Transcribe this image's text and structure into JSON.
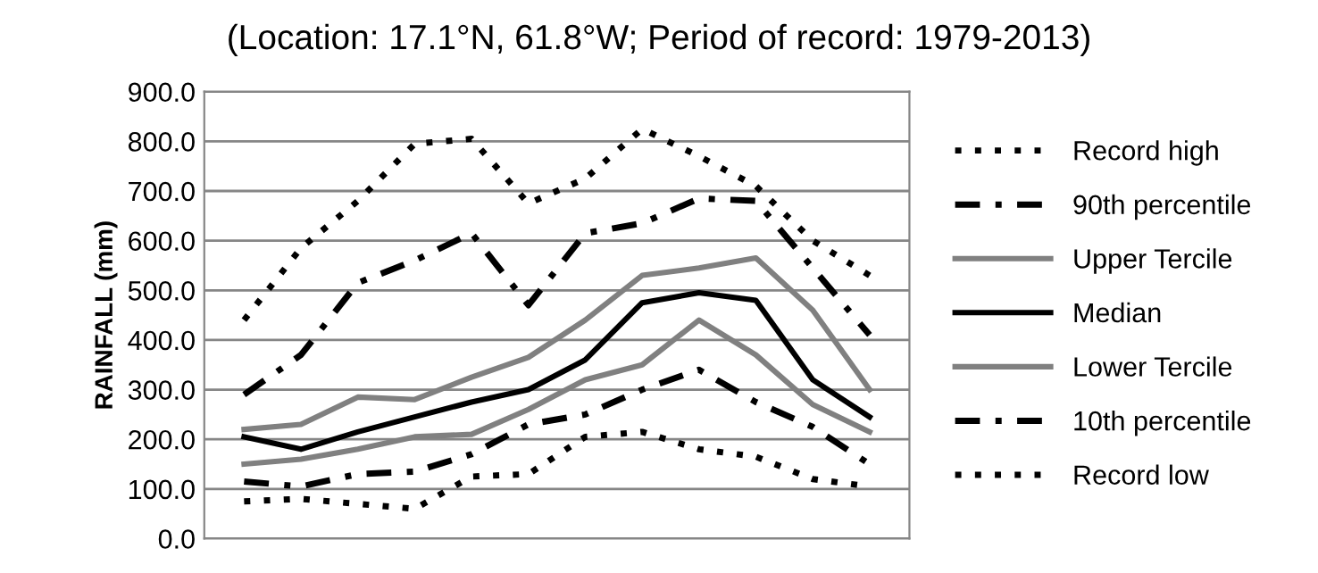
{
  "chart_data": {
    "type": "line",
    "title": "(Location: 17.1°N, 61.8°W; Period of record: 1979-2013)",
    "ylabel": "RAINFALL (mm)",
    "categories": [
      null,
      null,
      null,
      null,
      null,
      null,
      null,
      null,
      null,
      null,
      null,
      null
    ],
    "series": [
      {
        "name": "Record high",
        "color": "#000000",
        "line_style": "dotted",
        "values": [
          440,
          585,
          680,
          795,
          805,
          675,
          725,
          825,
          770,
          710,
          600,
          530
        ]
      },
      {
        "name": "90th percentile",
        "color": "#000000",
        "line_style": "dashdot",
        "values": [
          290,
          370,
          515,
          560,
          615,
          470,
          615,
          635,
          685,
          680,
          545,
          410
        ]
      },
      {
        "name": "Upper Tercile",
        "color": "#808080",
        "line_style": "solid",
        "values": [
          220,
          230,
          285,
          280,
          325,
          365,
          440,
          530,
          545,
          565,
          460,
          300
        ]
      },
      {
        "name": "Median",
        "color": "#000000",
        "line_style": "solid",
        "values": [
          205,
          180,
          215,
          245,
          275,
          300,
          360,
          475,
          495,
          480,
          320,
          245
        ]
      },
      {
        "name": "Lower Tercile",
        "color": "#808080",
        "line_style": "solid",
        "values": [
          150,
          160,
          180,
          205,
          210,
          260,
          320,
          350,
          440,
          370,
          270,
          215
        ]
      },
      {
        "name": "10th percentile",
        "color": "#000000",
        "line_style": "dashdot",
        "values": [
          115,
          105,
          130,
          135,
          170,
          230,
          250,
          300,
          340,
          275,
          225,
          150
        ]
      },
      {
        "name": "Record low",
        "color": "#000000",
        "line_style": "dotted",
        "values": [
          75,
          80,
          70,
          60,
          125,
          130,
          205,
          215,
          180,
          165,
          120,
          105
        ]
      }
    ],
    "ylim": [
      0,
      900
    ],
    "yticks": [
      {
        "value": 0,
        "label": "0.0"
      },
      {
        "value": 100,
        "label": "100.0"
      },
      {
        "value": 200,
        "label": "200.0"
      },
      {
        "value": 300,
        "label": "300.0"
      },
      {
        "value": 400,
        "label": "400.0"
      },
      {
        "value": 500,
        "label": "500.0"
      },
      {
        "value": 600,
        "label": "600.0"
      },
      {
        "value": 700,
        "label": "700.0"
      },
      {
        "value": 800,
        "label": "800.0"
      },
      {
        "value": 900,
        "label": "900.0"
      }
    ],
    "grid": "y",
    "legend": "right",
    "marker": "none"
  }
}
